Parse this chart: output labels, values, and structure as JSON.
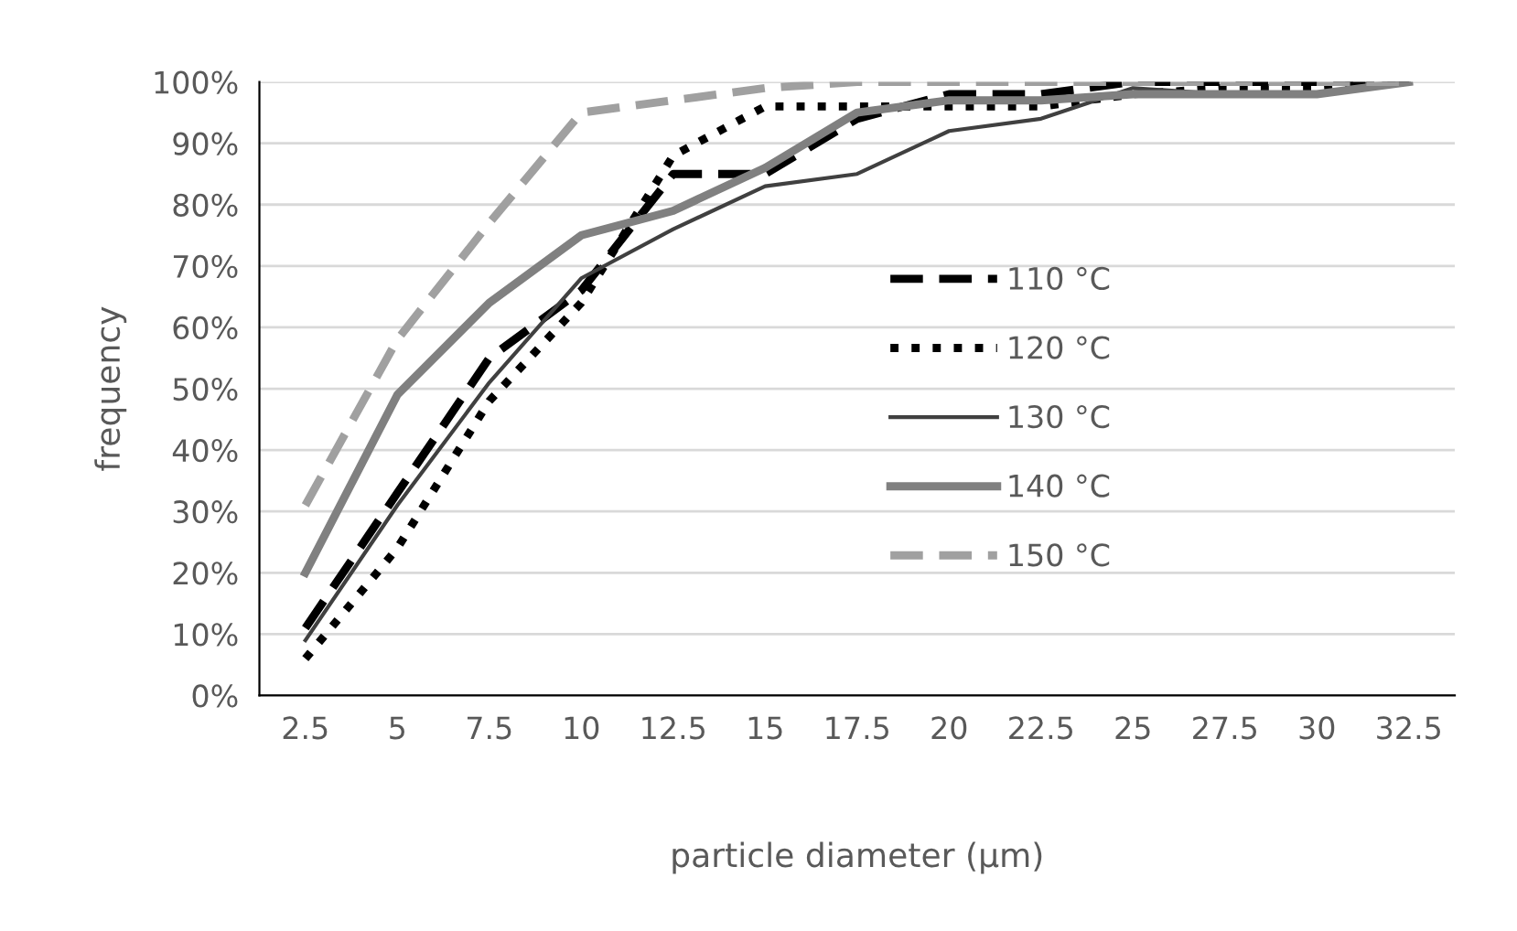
{
  "chart_data": {
    "type": "line",
    "xlabel": "particle diameter (µm)",
    "ylabel": "frequency",
    "categories": [
      "2.5",
      "5",
      "7.5",
      "10",
      "12.5",
      "15",
      "17.5",
      "20",
      "22.5",
      "25",
      "27.5",
      "30",
      "32.5"
    ],
    "series": [
      {
        "name": "110 °C",
        "color": "#000000",
        "line_style": "dashed",
        "values": [
          11,
          33,
          55,
          66,
          85,
          85,
          94,
          98,
          98,
          100,
          100,
          100,
          100
        ]
      },
      {
        "name": "120 °C",
        "color": "#000000",
        "line_style": "dotted",
        "values": [
          6,
          24,
          48,
          64,
          88,
          96,
          96,
          96,
          96,
          98,
          99,
          99,
          100
        ]
      },
      {
        "name": "130 °C",
        "color": "#404040",
        "line_style": "solid",
        "values": [
          9,
          31,
          51,
          68,
          76,
          83,
          85,
          92,
          94,
          99,
          98,
          98,
          100
        ]
      },
      {
        "name": "140 °C",
        "color": "#808080",
        "line_style": "solid",
        "values": [
          20,
          49,
          64,
          75,
          79,
          86,
          95,
          97,
          97,
          98,
          98,
          98,
          100
        ]
      },
      {
        "name": "150 °C",
        "color": "#a0a0a0",
        "line_style": "dashed",
        "values": [
          31,
          58,
          77,
          95,
          97,
          99,
          100,
          100,
          100,
          100,
          100,
          100,
          100
        ]
      }
    ],
    "ylim": [
      0,
      100
    ],
    "yticks": [
      {
        "value": 0,
        "label": "0%"
      },
      {
        "value": 10,
        "label": "10%"
      },
      {
        "value": 20,
        "label": "20%"
      },
      {
        "value": 30,
        "label": "30%"
      },
      {
        "value": 40,
        "label": "40%"
      },
      {
        "value": 50,
        "label": "50%"
      },
      {
        "value": 60,
        "label": "60%"
      },
      {
        "value": 70,
        "label": "70%"
      },
      {
        "value": 80,
        "label": "80%"
      },
      {
        "value": 90,
        "label": "90%"
      },
      {
        "value": 100,
        "label": "100%"
      }
    ],
    "grid": "y",
    "legend": "center",
    "marker": "none"
  }
}
